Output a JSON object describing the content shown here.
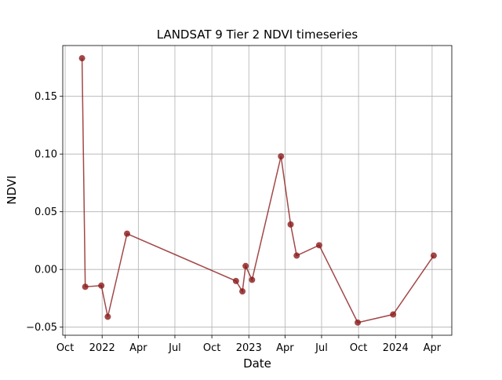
{
  "chart_data": {
    "type": "line",
    "title": "LANDSAT 9 Tier 2 NDVI timeseries",
    "xlabel": "Date",
    "ylabel": "NDVI",
    "grid": true,
    "xlim": [
      "2021-09-25",
      "2024-05-20"
    ],
    "ylim": [
      -0.057,
      0.194
    ],
    "x_ticks": [
      {
        "date": "2021-10-01",
        "label": "Oct"
      },
      {
        "date": "2022-01-01",
        "label": "2022"
      },
      {
        "date": "2022-04-01",
        "label": "Apr"
      },
      {
        "date": "2022-07-01",
        "label": "Jul"
      },
      {
        "date": "2022-10-01",
        "label": "Oct"
      },
      {
        "date": "2023-01-01",
        "label": "2023"
      },
      {
        "date": "2023-04-01",
        "label": "Apr"
      },
      {
        "date": "2023-07-01",
        "label": "Jul"
      },
      {
        "date": "2023-10-01",
        "label": "Oct"
      },
      {
        "date": "2024-01-01",
        "label": "2024"
      },
      {
        "date": "2024-04-01",
        "label": "Apr"
      }
    ],
    "y_ticks": [
      {
        "value": -0.05,
        "label": "−0.05"
      },
      {
        "value": 0.0,
        "label": "0.00"
      },
      {
        "value": 0.05,
        "label": "0.05"
      },
      {
        "value": 0.1,
        "label": "0.10"
      },
      {
        "value": 0.15,
        "label": "0.15"
      }
    ],
    "series": [
      {
        "color": "#8b1a1a",
        "points": [
          {
            "x": "2021-11-12",
            "y": 0.183
          },
          {
            "x": "2021-11-20",
            "y": -0.015
          },
          {
            "x": "2021-12-30",
            "y": -0.014
          },
          {
            "x": "2022-01-15",
            "y": -0.041
          },
          {
            "x": "2022-03-04",
            "y": 0.031
          },
          {
            "x": "2022-11-30",
            "y": -0.01
          },
          {
            "x": "2022-12-16",
            "y": -0.019
          },
          {
            "x": "2022-12-24",
            "y": 0.003
          },
          {
            "x": "2023-01-09",
            "y": -0.009
          },
          {
            "x": "2023-03-22",
            "y": 0.098
          },
          {
            "x": "2023-04-15",
            "y": 0.039
          },
          {
            "x": "2023-04-30",
            "y": 0.012
          },
          {
            "x": "2023-06-25",
            "y": 0.021
          },
          {
            "x": "2023-09-29",
            "y": -0.046
          },
          {
            "x": "2023-12-26",
            "y": -0.039
          },
          {
            "x": "2024-04-05",
            "y": 0.012
          }
        ]
      }
    ]
  }
}
